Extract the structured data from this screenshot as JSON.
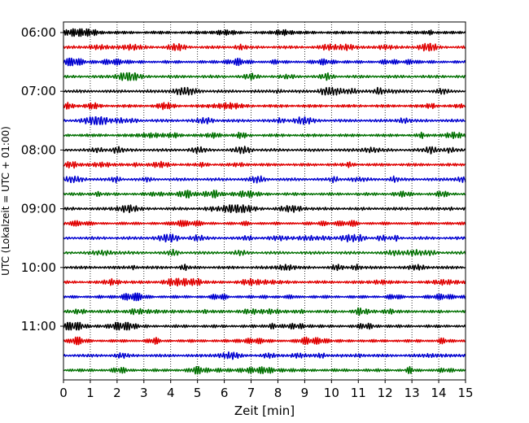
{
  "chart_data": {
    "type": "line",
    "title": "",
    "xlabel": "Zeit  [min]",
    "ylabel": "UTC (Lokalzeit = UTC + 01:00)",
    "xlim": [
      0,
      15
    ],
    "x_ticks": [
      0,
      1,
      2,
      3,
      4,
      5,
      6,
      7,
      8,
      9,
      10,
      11,
      12,
      13,
      14,
      15
    ],
    "x_tick_labels": [
      "0",
      "1",
      "2",
      "3",
      "4",
      "5",
      "6",
      "7",
      "8",
      "9",
      "10",
      "11",
      "12",
      "13",
      "14",
      "15"
    ],
    "y_tick_labels": [
      "06:00",
      "07:00",
      "08:00",
      "09:00",
      "10:00",
      "11:00"
    ],
    "trace_interval_min": 15,
    "trace_count": 24,
    "trace_start": "06:00",
    "trace_end": "11:45",
    "color_cycle": [
      "#000000",
      "#e00000",
      "#0000d0",
      "#007000"
    ],
    "grid": "vertical dotted lines at each minute",
    "legend": "none"
  }
}
